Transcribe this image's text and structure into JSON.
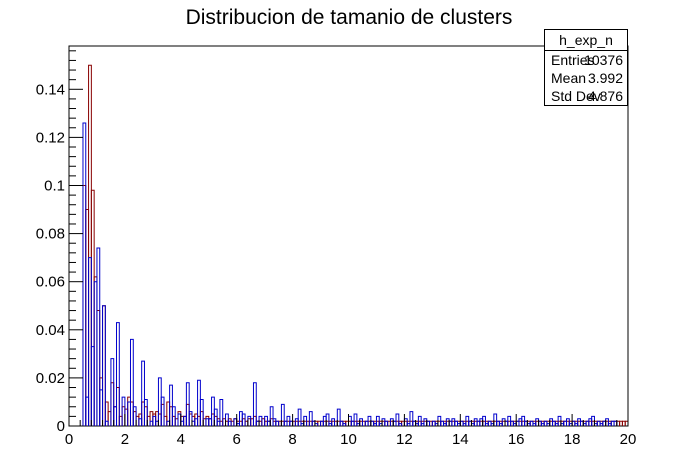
{
  "chart_data": {
    "type": "bar",
    "title": "Distribucion de tamanio de clusters",
    "xlabel": "",
    "ylabel": "",
    "xlim": [
      0,
      20
    ],
    "ylim": [
      0,
      0.158
    ],
    "x_ticks": [
      "0",
      "2",
      "4",
      "6",
      "8",
      "10",
      "12",
      "14",
      "16",
      "18",
      "20"
    ],
    "y_ticks": [
      "0",
      "0.02",
      "0.04",
      "0.06",
      "0.08",
      "0.1",
      "0.12",
      "0.14"
    ],
    "bin_width": 0.1,
    "series": [
      {
        "color": "#0000cc",
        "values": [
          0,
          0,
          0,
          0,
          0,
          0.126,
          0.012,
          0.07,
          0.033,
          0.06,
          0.074,
          0.015,
          0.05,
          0.002,
          0,
          0.028,
          0.008,
          0.043,
          0,
          0.012,
          0,
          0.01,
          0.036,
          0.008,
          0,
          0.003,
          0.027,
          0.011,
          0,
          0.002,
          0.004,
          0.002,
          0.02,
          0.012,
          0,
          0.002,
          0.017,
          0.008,
          0,
          0.005,
          0.002,
          0.004,
          0.018,
          0.006,
          0.002,
          0.003,
          0.019,
          0.011,
          0,
          0.003,
          0.003,
          0.012,
          0.007,
          0.002,
          0.011,
          0,
          0.005,
          0.002,
          0,
          0.003,
          0.001,
          0.006,
          0.005,
          0,
          0.004,
          0,
          0.018,
          0.002,
          0.004,
          0,
          0.004,
          0.002,
          0.008,
          0.003,
          0.002,
          0,
          0.009,
          0.002,
          0.004,
          0.002,
          0,
          0.003,
          0.007,
          0.001,
          0.004,
          0,
          0.006,
          0.002,
          0.001,
          0,
          0.002,
          0.004,
          0.005,
          0.001,
          0.003,
          0,
          0.007,
          0.002,
          0.001,
          0,
          0.004,
          0.002,
          0.005,
          0.001,
          0.003,
          0,
          0.002,
          0.004,
          0.002,
          0.001,
          0.004,
          0.001,
          0.003,
          0.002,
          0,
          0.003,
          0.002,
          0.005,
          0.001,
          0,
          0.003,
          0.001,
          0.006,
          0.002,
          0.001,
          0.004,
          0.001,
          0.003,
          0.002,
          0,
          0.002,
          0.001,
          0.004,
          0.002,
          0.001,
          0.003,
          0.002,
          0.003,
          0.002,
          0.001,
          0.002,
          0.001,
          0.004,
          0.002,
          0.001,
          0.003,
          0.002,
          0.003,
          0.004,
          0.001,
          0.002,
          0.001,
          0.005,
          0.002,
          0.001,
          0.003,
          0.002,
          0.004,
          0.002,
          0.001,
          0.002,
          0.003,
          0.004,
          0.002,
          0.001,
          0.002,
          0.001,
          0.003,
          0.002,
          0.001,
          0.002,
          0.001,
          0.003,
          0.002,
          0.001,
          0.004,
          0.001,
          0.002,
          0.003,
          0.001,
          0.002,
          0.001,
          0.003,
          0.002,
          0.001,
          0.002,
          0.003,
          0.004,
          0.001,
          0.002,
          0.001,
          0.002,
          0.003,
          0.001,
          0.002,
          0.002
        ]
      },
      {
        "color": "#880000",
        "values": [
          0,
          0,
          0,
          0,
          0,
          0.1,
          0.09,
          0.15,
          0.098,
          0.062,
          0.048,
          0.02,
          0.05,
          0.01,
          0.006,
          0.018,
          0.008,
          0.016,
          0.004,
          0.008,
          0.007,
          0.012,
          0.01,
          0.006,
          0.004,
          0.005,
          0.01,
          0.008,
          0.004,
          0.006,
          0.005,
          0.006,
          0.005,
          0.009,
          0.004,
          0.01,
          0.008,
          0.004,
          0.003,
          0.006,
          0.004,
          0.004,
          0.009,
          0.005,
          0.004,
          0.005,
          0.004,
          0.006,
          0.003,
          0.004,
          0.003,
          0.005,
          0.004,
          0.003,
          0.002,
          0.003,
          0.002,
          0.003,
          0.002,
          0.003,
          0.002,
          0.002,
          0.003,
          0.002,
          0.003,
          0.003,
          0.004,
          0.002,
          0.002,
          0.003,
          0.002,
          0.002,
          0.003,
          0.002,
          0.002,
          0.002,
          0.002,
          0.002,
          0.002,
          0.002,
          0.002,
          0.002,
          0.002,
          0.002,
          0.002,
          0.002,
          0.002,
          0.002,
          0.002,
          0.002,
          0.002,
          0.002,
          0.002,
          0.002,
          0.002,
          0.002,
          0.002,
          0.002,
          0.002,
          0.002,
          0.002,
          0.002,
          0.002,
          0.002,
          0.002,
          0.002,
          0.002,
          0.002,
          0.002,
          0.002,
          0.002,
          0.002,
          0.002,
          0.002,
          0.002,
          0.002,
          0.002,
          0.002,
          0.002,
          0.002,
          0.002,
          0.002,
          0.002,
          0.002,
          0.002,
          0.002,
          0.002,
          0.002,
          0.002,
          0.002,
          0.002,
          0.002,
          0.002,
          0.002,
          0.002,
          0.002,
          0.002,
          0.002,
          0.002,
          0.002,
          0.002,
          0.002,
          0.002,
          0.002,
          0.002,
          0.002,
          0.002,
          0.002,
          0.002,
          0.002,
          0.002,
          0.002,
          0.002,
          0.002,
          0.002,
          0.002,
          0.002,
          0.002,
          0.002,
          0.002,
          0.002,
          0.002,
          0.002,
          0.002,
          0.002,
          0.002,
          0.002,
          0.002,
          0.002,
          0.002,
          0.002,
          0.002,
          0.002,
          0.002,
          0.002,
          0.002,
          0.002,
          0.002,
          0.002,
          0.002,
          0.002,
          0.002,
          0.002,
          0.002,
          0.002,
          0.002,
          0.002,
          0.002,
          0.002,
          0.002,
          0.002,
          0.002,
          0.002,
          0.002,
          0.002,
          0.002,
          0.002,
          0.002,
          0.002,
          0.002
        ]
      }
    ],
    "stats": {
      "name": "h_exp_n",
      "rows": [
        {
          "label": "Entries",
          "value": "10376"
        },
        {
          "label": "Mean",
          "value": "3.992"
        },
        {
          "label": "Std Dev",
          "value": "4.876"
        }
      ]
    }
  }
}
